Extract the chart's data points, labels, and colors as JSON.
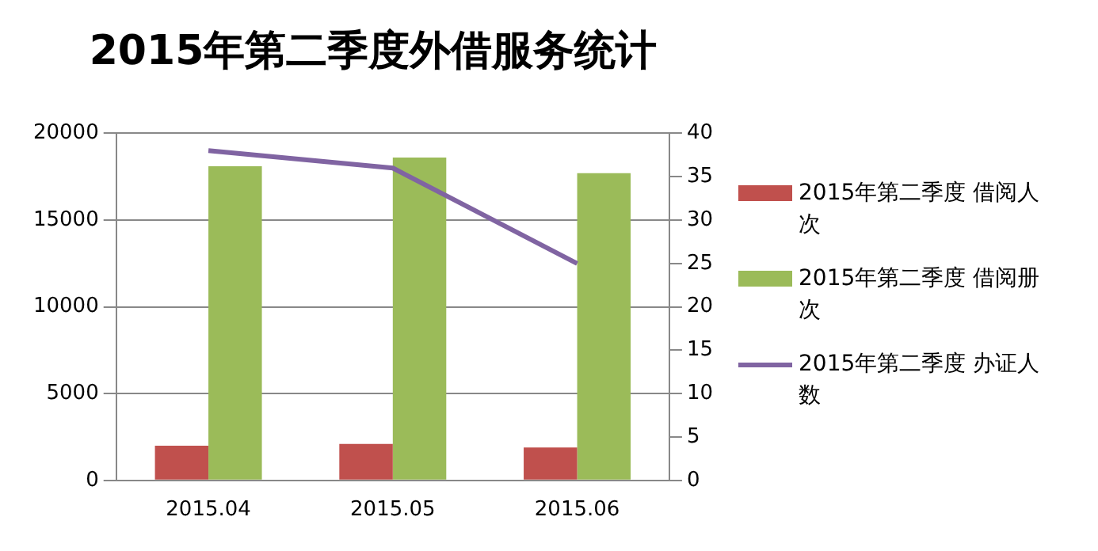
{
  "chart_data": {
    "type": "bar",
    "title": "2015年第二季度外借服务统计",
    "categories": [
      "2015.04",
      "2015.05",
      "2015.06"
    ],
    "series": [
      {
        "name": "2015年第二季度 借阅人次",
        "color": "#c0504d",
        "values": [
          2000,
          2100,
          1900
        ]
      },
      {
        "name": "2015年第二季度 借阅册次",
        "color": "#9bbb59",
        "values": [
          18100,
          18600,
          17700
        ]
      },
      {
        "name": "2015年第二季度 办证人数",
        "color": "#8064a2",
        "type": "line",
        "axis": "y2",
        "marker": "none",
        "values": [
          38,
          36,
          25
        ]
      }
    ],
    "ylim": [
      0,
      20000
    ],
    "yticks": [
      0,
      5000,
      10000,
      15000,
      20000
    ],
    "y2lim": [
      0,
      40
    ],
    "y2ticks": [
      0,
      5,
      10,
      15,
      20,
      25,
      30,
      35,
      40
    ],
    "grid": "y",
    "legend": "right"
  }
}
